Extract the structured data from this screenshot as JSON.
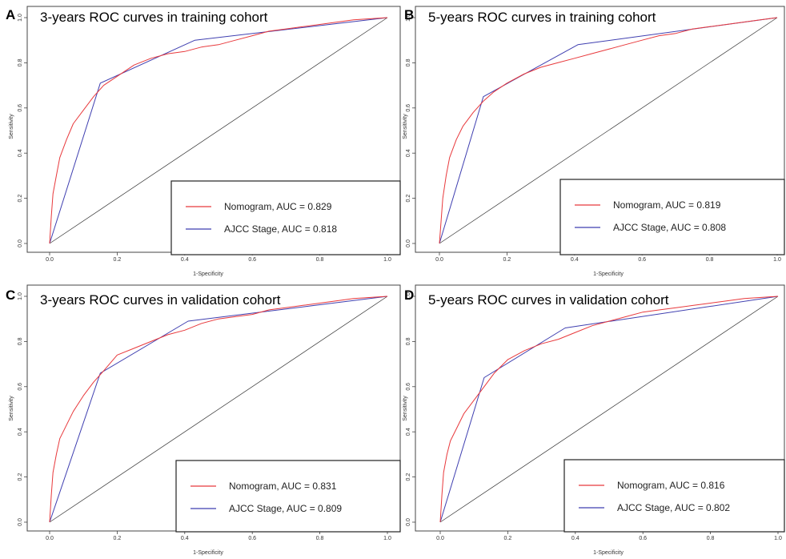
{
  "chart_data": [
    {
      "panel": "A",
      "type": "line",
      "title": "3-years ROC curves in training cohort",
      "xlabel": "1-Specificity",
      "ylabel": "Sensitivity",
      "xlim": [
        0,
        1
      ],
      "ylim": [
        0,
        1
      ],
      "xticks": [
        "0.0",
        "0.2",
        "0.4",
        "0.6",
        "0.8",
        "1.0"
      ],
      "yticks": [
        "0.0",
        "0.2",
        "0.4",
        "0.6",
        "0.8",
        "1.0"
      ],
      "legend_position": "bottom-right",
      "series": [
        {
          "name": "Nomogram, AUC = 0.829",
          "color": "#e8393c",
          "x": [
            0,
            0.005,
            0.01,
            0.02,
            0.03,
            0.05,
            0.07,
            0.1,
            0.13,
            0.16,
            0.2,
            0.25,
            0.3,
            0.35,
            0.4,
            0.45,
            0.5,
            0.55,
            0.6,
            0.65,
            0.7,
            0.75,
            0.8,
            0.85,
            0.9,
            0.95,
            1
          ],
          "y": [
            0,
            0.12,
            0.22,
            0.3,
            0.38,
            0.46,
            0.53,
            0.59,
            0.65,
            0.7,
            0.74,
            0.79,
            0.82,
            0.84,
            0.85,
            0.87,
            0.88,
            0.9,
            0.92,
            0.94,
            0.95,
            0.96,
            0.97,
            0.98,
            0.99,
            0.995,
            1
          ]
        },
        {
          "name": "AJCC Stage, AUC = 0.818",
          "color": "#3f3fb0",
          "x": [
            0,
            0.15,
            0.43,
            1
          ],
          "y": [
            0,
            0.71,
            0.9,
            1
          ]
        },
        {
          "name": "",
          "color": "#333333",
          "x": [
            0,
            1
          ],
          "y": [
            0,
            1
          ]
        }
      ]
    },
    {
      "panel": "B",
      "type": "line",
      "title": "5-years ROC curves in training cohort",
      "xlabel": "1-Specificity",
      "ylabel": "Sensitivity",
      "xlim": [
        0,
        1
      ],
      "ylim": [
        0,
        1
      ],
      "xticks": [
        "0.0",
        "0.2",
        "0.4",
        "0.6",
        "0.8",
        "1.0"
      ],
      "yticks": [
        "0.0",
        "0.2",
        "0.4",
        "0.6",
        "0.8",
        "1.0"
      ],
      "legend_position": "bottom-right",
      "series": [
        {
          "name": "Nomogram, AUC = 0.819",
          "color": "#e8393c",
          "x": [
            0,
            0.005,
            0.01,
            0.02,
            0.03,
            0.05,
            0.07,
            0.1,
            0.13,
            0.16,
            0.2,
            0.25,
            0.3,
            0.35,
            0.4,
            0.45,
            0.5,
            0.55,
            0.6,
            0.65,
            0.7,
            0.75,
            0.8,
            0.85,
            0.9,
            0.95,
            1
          ],
          "y": [
            0,
            0.1,
            0.2,
            0.3,
            0.38,
            0.46,
            0.52,
            0.58,
            0.63,
            0.67,
            0.71,
            0.75,
            0.78,
            0.8,
            0.82,
            0.84,
            0.86,
            0.88,
            0.9,
            0.92,
            0.93,
            0.95,
            0.96,
            0.97,
            0.98,
            0.99,
            1
          ]
        },
        {
          "name": "AJCC Stage, AUC = 0.808",
          "color": "#3f3fb0",
          "x": [
            0,
            0.13,
            0.41,
            1
          ],
          "y": [
            0,
            0.65,
            0.88,
            1
          ]
        },
        {
          "name": "",
          "color": "#333333",
          "x": [
            0,
            1
          ],
          "y": [
            0,
            1
          ]
        }
      ]
    },
    {
      "panel": "C",
      "type": "line",
      "title": "3-years ROC curves in validation cohort",
      "xlabel": "1-Specificity",
      "ylabel": "Sensitivity",
      "xlim": [
        0,
        1
      ],
      "ylim": [
        0,
        1
      ],
      "xticks": [
        "0.0",
        "0.2",
        "0.4",
        "0.6",
        "0.8",
        "1.0"
      ],
      "yticks": [
        "0.0",
        "0.2",
        "0.4",
        "0.6",
        "0.8",
        "1.0"
      ],
      "legend_position": "bottom-right",
      "series": [
        {
          "name": "Nomogram, AUC = 0.831",
          "color": "#e8393c",
          "x": [
            0,
            0.005,
            0.01,
            0.02,
            0.03,
            0.05,
            0.07,
            0.1,
            0.13,
            0.16,
            0.2,
            0.25,
            0.3,
            0.35,
            0.4,
            0.45,
            0.5,
            0.55,
            0.6,
            0.65,
            0.7,
            0.75,
            0.8,
            0.85,
            0.9,
            0.95,
            1
          ],
          "y": [
            0,
            0.12,
            0.22,
            0.3,
            0.37,
            0.43,
            0.49,
            0.56,
            0.62,
            0.67,
            0.74,
            0.77,
            0.8,
            0.83,
            0.85,
            0.88,
            0.9,
            0.91,
            0.92,
            0.94,
            0.95,
            0.96,
            0.97,
            0.98,
            0.99,
            0.995,
            1
          ]
        },
        {
          "name": "AJCC Stage, AUC = 0.809",
          "color": "#3f3fb0",
          "x": [
            0,
            0.15,
            0.41,
            1
          ],
          "y": [
            0,
            0.66,
            0.89,
            1
          ]
        },
        {
          "name": "",
          "color": "#333333",
          "x": [
            0,
            1
          ],
          "y": [
            0,
            1
          ]
        }
      ]
    },
    {
      "panel": "D",
      "type": "line",
      "title": "5-years ROC curves in validation cohort",
      "xlabel": "1-Specificity",
      "ylabel": "Sensitivity",
      "xlim": [
        0,
        1
      ],
      "ylim": [
        0,
        1
      ],
      "xticks": [
        "0.0",
        "0.2",
        "0.4",
        "0.6",
        "0.8",
        "1.0"
      ],
      "yticks": [
        "0.0",
        "0.2",
        "0.4",
        "0.6",
        "0.8",
        "1.0"
      ],
      "legend_position": "bottom-right",
      "series": [
        {
          "name": "Nomogram, AUC = 0.816",
          "color": "#e8393c",
          "x": [
            0,
            0.005,
            0.01,
            0.02,
            0.03,
            0.05,
            0.07,
            0.1,
            0.13,
            0.16,
            0.2,
            0.25,
            0.3,
            0.35,
            0.4,
            0.45,
            0.5,
            0.55,
            0.6,
            0.65,
            0.7,
            0.75,
            0.8,
            0.85,
            0.9,
            0.95,
            1
          ],
          "y": [
            0,
            0.12,
            0.22,
            0.3,
            0.36,
            0.42,
            0.48,
            0.54,
            0.6,
            0.66,
            0.72,
            0.76,
            0.79,
            0.81,
            0.84,
            0.87,
            0.89,
            0.91,
            0.93,
            0.94,
            0.95,
            0.96,
            0.97,
            0.98,
            0.99,
            0.995,
            1
          ]
        },
        {
          "name": "AJCC Stage, AUC = 0.802",
          "color": "#3f3fb0",
          "x": [
            0,
            0.13,
            0.37,
            1
          ],
          "y": [
            0,
            0.64,
            0.86,
            1
          ]
        },
        {
          "name": "",
          "color": "#333333",
          "x": [
            0,
            1
          ],
          "y": [
            0,
            1
          ]
        }
      ]
    }
  ]
}
